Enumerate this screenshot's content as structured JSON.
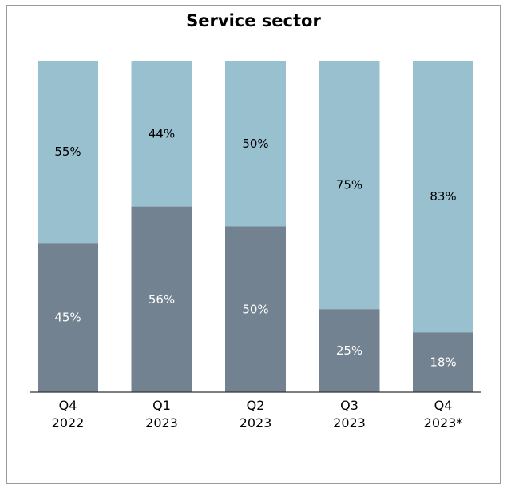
{
  "chart_data": {
    "type": "bar",
    "stacked": true,
    "title": "Service sector",
    "categories": [
      [
        "Q4",
        "2022"
      ],
      [
        "Q1",
        "2023"
      ],
      [
        "Q2",
        "2023"
      ],
      [
        "Q3",
        "2023"
      ],
      [
        "Q4",
        "2023*"
      ]
    ],
    "series": [
      {
        "values": [
          45,
          56,
          50,
          25,
          18
        ],
        "labels": [
          "45%",
          "56%",
          "50%",
          "25%",
          "18%"
        ],
        "color": "#738290"
      },
      {
        "values": [
          55,
          44,
          50,
          75,
          83
        ],
        "labels": [
          "55%",
          "44%",
          "50%",
          "75%",
          "83%"
        ],
        "color": "#98c0cf"
      }
    ],
    "ylim": [
      0,
      100
    ],
    "grid": false,
    "label_colors": {
      "bottom": "#ffffff",
      "top": "#000000"
    }
  }
}
